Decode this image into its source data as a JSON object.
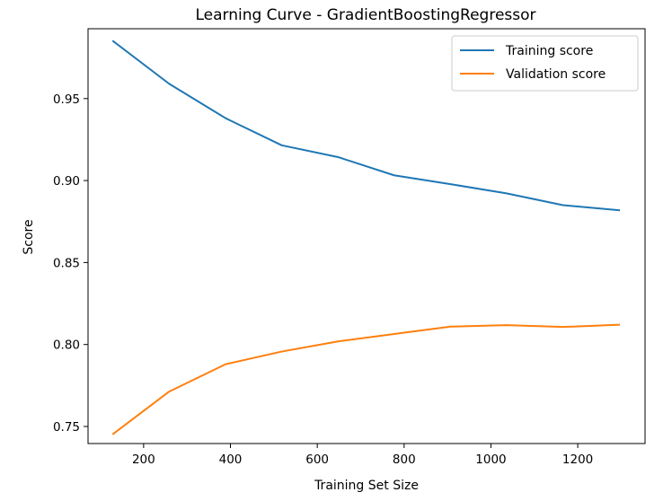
{
  "chart_data": {
    "type": "line",
    "title": "Learning Curve - GradientBoostingRegressor",
    "xlabel": "Training Set Size",
    "ylabel": "Score",
    "xlim": [
      72,
      1355
    ],
    "ylim": [
      0.7396,
      0.9926
    ],
    "xticks": [
      200,
      400,
      600,
      800,
      1000,
      1200
    ],
    "yticks": [
      0.75,
      0.8,
      0.85,
      0.9,
      0.95
    ],
    "xtick_labels": [
      "200",
      "400",
      "600",
      "800",
      "1000",
      "1200"
    ],
    "ytick_labels": [
      "0.75",
      "0.80",
      "0.85",
      "0.90",
      "0.95"
    ],
    "grid": false,
    "legend_position": "top-right",
    "x": [
      130,
      259,
      389,
      518,
      648,
      777,
      907,
      1036,
      1166,
      1295
    ],
    "series": [
      {
        "name": "Training score",
        "color": "#1f77b4",
        "values": [
          0.985,
          0.959,
          0.938,
          0.9215,
          0.9143,
          0.9032,
          0.8978,
          0.8922,
          0.885,
          0.8819
        ]
      },
      {
        "name": "Validation score",
        "color": "#ff7f0e",
        "values": [
          0.7455,
          0.7713,
          0.788,
          0.7957,
          0.8019,
          0.8064,
          0.8109,
          0.8118,
          0.8107,
          0.8121
        ]
      }
    ]
  }
}
